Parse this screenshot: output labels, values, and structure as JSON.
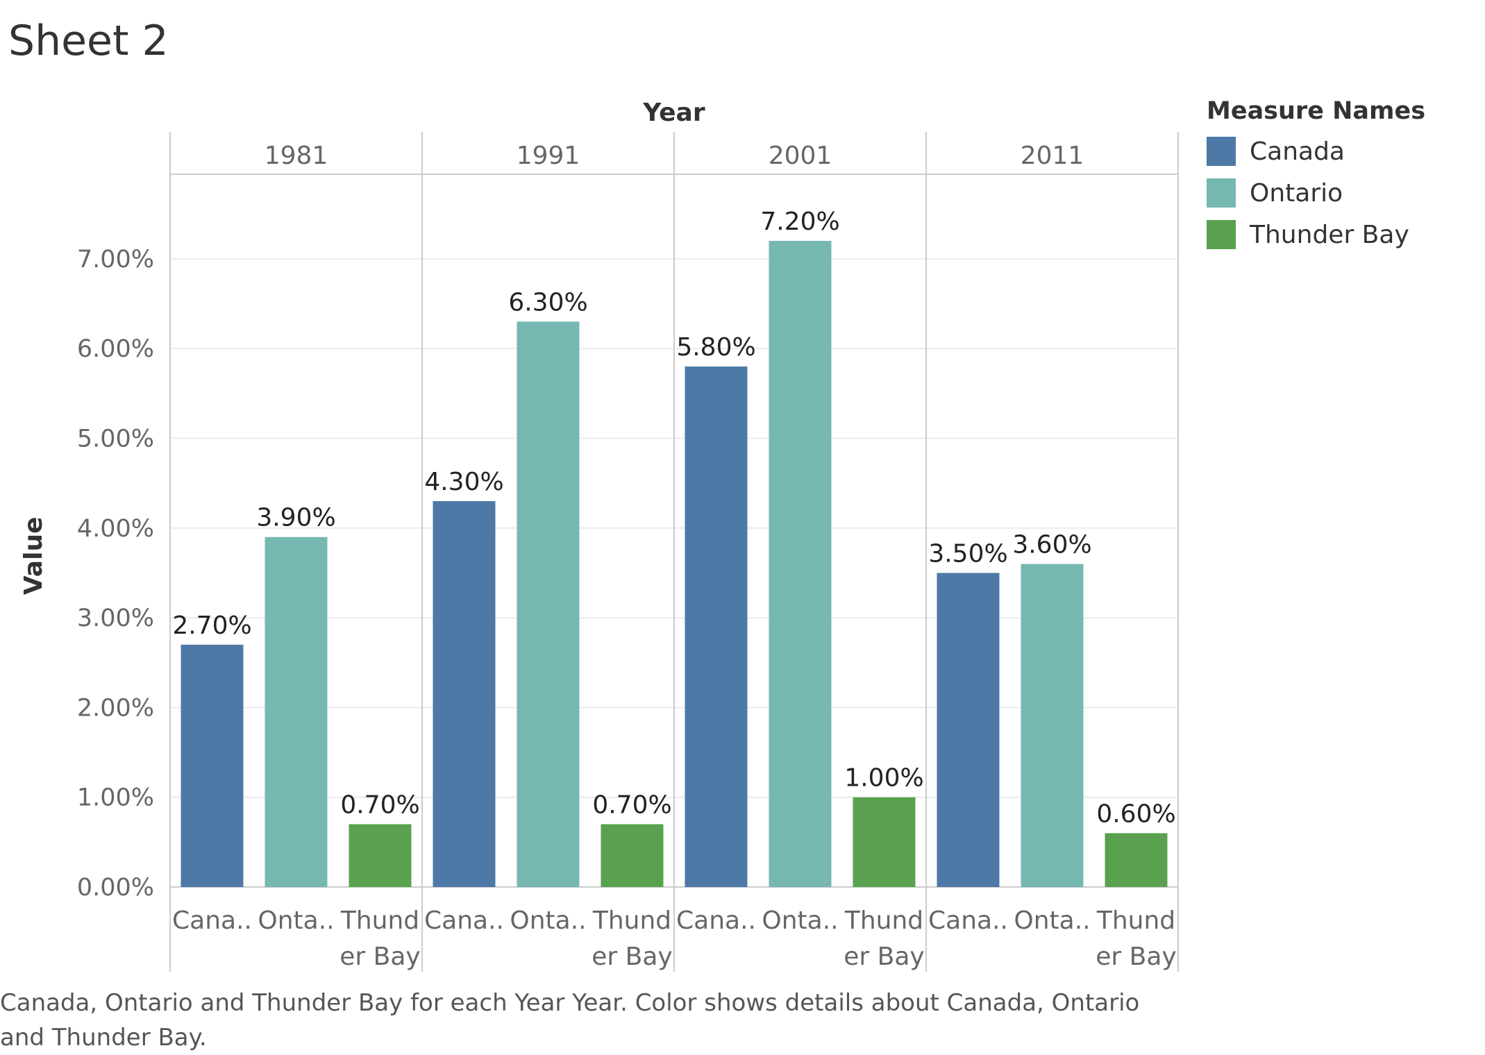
{
  "sheet": {
    "title": "Sheet 2",
    "caption": "Canada, Ontario and Thunder Bay for each Year Year.  Color shows details about Canada, Ontario and Thunder Bay."
  },
  "legend": {
    "title": "Measure Names",
    "items": [
      {
        "label": "Canada",
        "color": "#4e79a7"
      },
      {
        "label": "Ontario",
        "color": "#76b7b2"
      },
      {
        "label": "Thunder Bay",
        "color": "#59a14f"
      }
    ]
  },
  "chart_data": {
    "type": "bar",
    "column_header": "Year",
    "ylabel": "Value",
    "ylim": [
      0,
      8
    ],
    "y_ticks": [
      "0.00%",
      "1.00%",
      "2.00%",
      "3.00%",
      "4.00%",
      "5.00%",
      "6.00%",
      "7.00%"
    ],
    "y_tick_values": [
      0,
      1,
      2,
      3,
      4,
      5,
      6,
      7
    ],
    "grid": true,
    "legend_position": "right",
    "years": [
      "1981",
      "1991",
      "2001",
      "2011"
    ],
    "category_tick_lines": [
      [
        "Cana.."
      ],
      [
        "Onta.."
      ],
      [
        "Thund",
        "er Bay"
      ]
    ],
    "series": [
      {
        "name": "Canada",
        "values": [
          2.7,
          4.3,
          5.8,
          3.5
        ],
        "labels": [
          "2.70%",
          "4.30%",
          "5.80%",
          "3.50%"
        ]
      },
      {
        "name": "Ontario",
        "values": [
          3.9,
          6.3,
          7.2,
          3.6
        ],
        "labels": [
          "3.90%",
          "6.30%",
          "7.20%",
          "3.60%"
        ]
      },
      {
        "name": "Thunder Bay",
        "values": [
          0.7,
          0.7,
          1.0,
          0.6
        ],
        "labels": [
          "0.70%",
          "0.70%",
          "1.00%",
          "0.60%"
        ]
      }
    ]
  }
}
